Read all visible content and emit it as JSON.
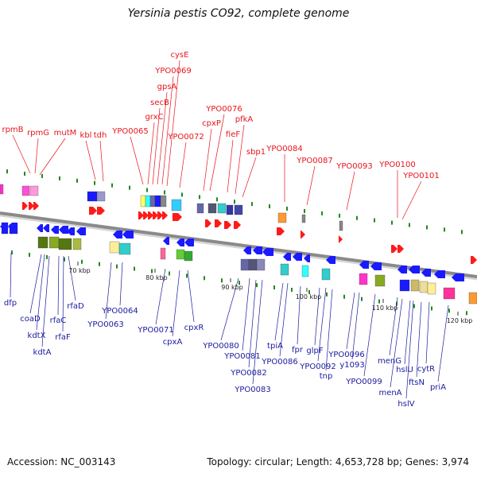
{
  "title": "Yersinia pestis CO92, complete genome",
  "footer": {
    "accession": "Accession: NC_003143",
    "summary": "Topology: circular; Length: 4,653,728 bp; Genes: 3,974"
  },
  "colors": {
    "forward_label": "#e8141b",
    "reverse_label": "#1a1aa0",
    "backbone": "#8a8a8a",
    "cog_marker": "#1e8a1e"
  },
  "scale_labels": [
    "70 kbp",
    "80 kbp",
    "90 kbp",
    "100 kbp",
    "110 kbp",
    "120 kbp"
  ],
  "forward_genes": [
    "rpmB",
    "rpmG",
    "mutM",
    "kbl",
    "tdh",
    "YPO0065",
    "grxC",
    "secB",
    "gpsA",
    "YPO0069",
    "cysE",
    "YPO0072",
    "cpxP",
    "YPO0076",
    "fieF",
    "pfkA",
    "sbp1",
    "YPO0084",
    "YPO0087",
    "YPO0093",
    "YPO0100",
    "YPO0101"
  ],
  "reverse_genes": [
    "dfp",
    "coaD",
    "kdtX",
    "kdtA",
    "rfaC",
    "rfaF",
    "rfaD",
    "YPO0063",
    "YPO0064",
    "YPO0071",
    "cpxA",
    "cpxR",
    "YPO0080",
    "YPO0081",
    "YPO0082",
    "YPO0083",
    "tpiA",
    "YPO0086",
    "fpr",
    "glpF",
    "YPO0092",
    "tnp",
    "YPO0096",
    "y1093",
    "YPO0099",
    "menG",
    "menA",
    "hslU",
    "hslV",
    "ftsN",
    "cytR",
    "priA"
  ]
}
